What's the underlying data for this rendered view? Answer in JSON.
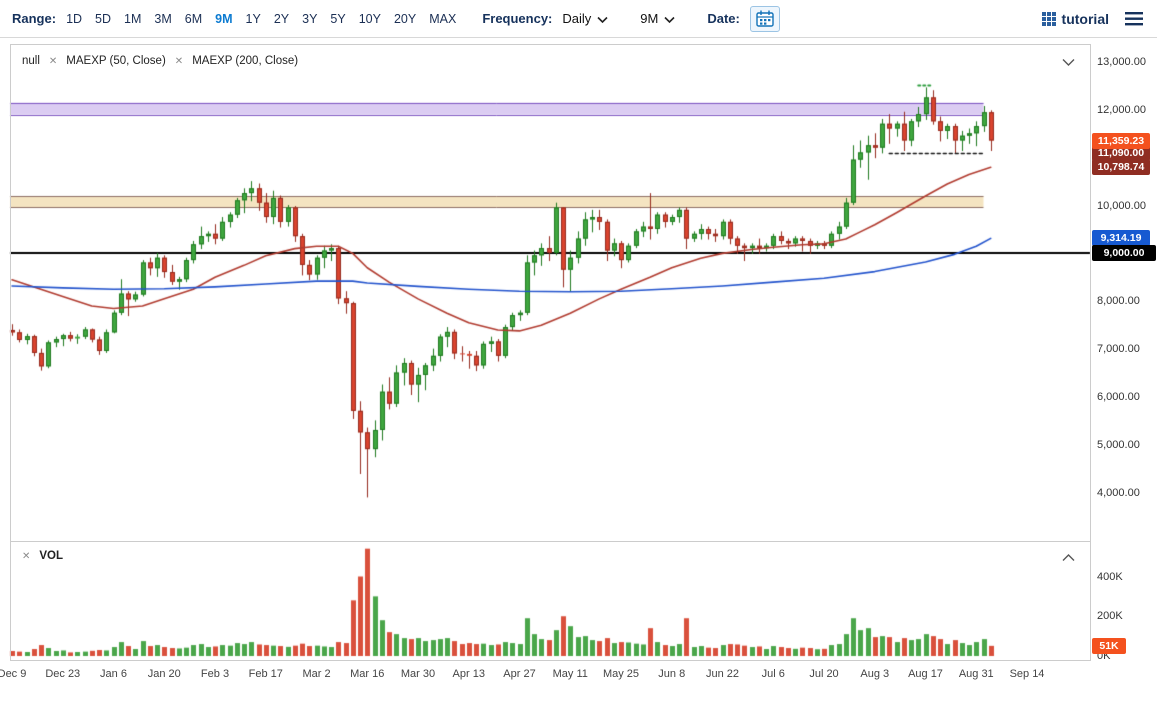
{
  "toolbar": {
    "range_label": "Range:",
    "ranges": [
      "1D",
      "5D",
      "1M",
      "3M",
      "6M",
      "9M",
      "1Y",
      "2Y",
      "3Y",
      "5Y",
      "10Y",
      "20Y",
      "MAX"
    ],
    "active_range": "9M",
    "frequency_label": "Frequency:",
    "frequency_value": "Daily",
    "period_value": "9M",
    "date_label": "Date:",
    "brand": "tutorial"
  },
  "icons": {
    "close": "✕"
  },
  "legend": {
    "series_name": "null",
    "studies": [
      "MAEXP (50, Close)",
      "MAEXP (200, Close)"
    ],
    "volume_label": "VOL"
  },
  "axis": {
    "price_ticks": [
      "13,000.00",
      "12,000.00",
      "11,000.00",
      "10,000.00",
      "9,000.00",
      "8,000.00",
      "7,000.00",
      "6,000.00",
      "5,000.00",
      "4,000.00"
    ],
    "volume_ticks": [
      "400K",
      "200K",
      "0K"
    ],
    "x_ticks": [
      "Dec 9",
      "Dec 23",
      "Jan 6",
      "Jan 20",
      "Feb 3",
      "Feb 17",
      "Mar 2",
      "Mar 16",
      "Mar 30",
      "Apr 13",
      "Apr 27",
      "May 11",
      "May 25",
      "Jun 8",
      "Jun 22",
      "Jul 6",
      "Jul 20",
      "Aug 3",
      "Aug 17",
      "Aug 31",
      "Sep 14"
    ]
  },
  "badges": {
    "last_price": {
      "text": "11,359.23",
      "color": "#f4511e",
      "value": 11359.23
    },
    "annotation": {
      "text": "11,090.00",
      "color": "#8f2d22",
      "value": 11090
    },
    "ma50": {
      "text": "10,798.74",
      "color": "#8f2d22",
      "value": 10798.74
    },
    "ma200": {
      "text": "9,314.19",
      "color": "#1659d1",
      "value": 9314.19
    },
    "hline": {
      "text": "9,000.00",
      "color": "#000000",
      "value": 9000
    },
    "volume": {
      "text": "51K",
      "color": "#f4511e",
      "value": 51
    }
  },
  "chart_data": {
    "type": "candlestick",
    "frequency": "Daily",
    "range": "9M",
    "x_tick_labels": [
      "Dec 9",
      "Dec 23",
      "Jan 6",
      "Jan 20",
      "Feb 3",
      "Feb 17",
      "Mar 2",
      "Mar 16",
      "Mar 30",
      "Apr 13",
      "Apr 27",
      "May 11",
      "May 25",
      "Jun 8",
      "Jun 22",
      "Jul 6",
      "Jul 20",
      "Aug 3",
      "Aug 17",
      "Aug 31",
      "Sep 14"
    ],
    "x_tick_step": 7,
    "price_axis": {
      "min": 3600,
      "max": 13200,
      "tick_values": [
        13000,
        12000,
        11000,
        10000,
        9000,
        8000,
        7000,
        6000,
        5000,
        4000
      ]
    },
    "volume_axis": {
      "unit": "K",
      "max": 560,
      "tick_values": [
        400,
        200,
        0
      ]
    },
    "last_price": 11359.23,
    "candles_ohlcv": [
      [
        7400,
        7520,
        7280,
        7350,
        25
      ],
      [
        7350,
        7410,
        7140,
        7190,
        22
      ],
      [
        7190,
        7320,
        7100,
        7270,
        20
      ],
      [
        7270,
        7300,
        6850,
        6920,
        35
      ],
      [
        6920,
        7010,
        6550,
        6640,
        55
      ],
      [
        6640,
        7180,
        6600,
        7140,
        40
      ],
      [
        7140,
        7260,
        7040,
        7210,
        25
      ],
      [
        7210,
        7320,
        7060,
        7290,
        28
      ],
      [
        7290,
        7360,
        7160,
        7220,
        18
      ],
      [
        7220,
        7310,
        7110,
        7260,
        20
      ],
      [
        7260,
        7460,
        7210,
        7410,
        22
      ],
      [
        7410,
        7430,
        7140,
        7200,
        26
      ],
      [
        7200,
        7260,
        6880,
        6960,
        30
      ],
      [
        6960,
        7410,
        6920,
        7350,
        28
      ],
      [
        7350,
        7810,
        7330,
        7760,
        45
      ],
      [
        7760,
        8460,
        7710,
        8160,
        70
      ],
      [
        8160,
        8210,
        7690,
        8040,
        50
      ],
      [
        8040,
        8200,
        7990,
        8140,
        35
      ],
      [
        8140,
        8860,
        8100,
        8810,
        75
      ],
      [
        8810,
        8910,
        8540,
        8690,
        50
      ],
      [
        8690,
        9010,
        8510,
        8910,
        55
      ],
      [
        8910,
        8960,
        8490,
        8610,
        45
      ],
      [
        8610,
        8760,
        8340,
        8410,
        40
      ],
      [
        8410,
        8510,
        8240,
        8460,
        38
      ],
      [
        8460,
        8910,
        8400,
        8860,
        42
      ],
      [
        8860,
        9260,
        8790,
        9190,
        55
      ],
      [
        9190,
        9560,
        9090,
        9360,
        60
      ],
      [
        9360,
        9460,
        9240,
        9410,
        45
      ],
      [
        9410,
        9610,
        9190,
        9310,
        48
      ],
      [
        9310,
        9760,
        9260,
        9660,
        55
      ],
      [
        9660,
        9860,
        9540,
        9810,
        52
      ],
      [
        9810,
        10160,
        9740,
        10110,
        65
      ],
      [
        10110,
        10360,
        9840,
        10260,
        60
      ],
      [
        10260,
        10510,
        10090,
        10360,
        70
      ],
      [
        10360,
        10460,
        9890,
        10060,
        58
      ],
      [
        10060,
        10260,
        9640,
        9760,
        55
      ],
      [
        9760,
        10310,
        9610,
        10160,
        52
      ],
      [
        10160,
        10210,
        9540,
        9660,
        50
      ],
      [
        9660,
        10010,
        9560,
        9960,
        46
      ],
      [
        9960,
        9990,
        9240,
        9360,
        52
      ],
      [
        9360,
        9410,
        8540,
        8760,
        62
      ],
      [
        8760,
        8860,
        8440,
        8560,
        50
      ],
      [
        8560,
        8960,
        8450,
        8910,
        52
      ],
      [
        8910,
        9160,
        8690,
        9060,
        48
      ],
      [
        9060,
        9190,
        8840,
        9110,
        45
      ],
      [
        9110,
        9160,
        7940,
        8060,
        70
      ],
      [
        8060,
        8210,
        7740,
        7960,
        65
      ],
      [
        7960,
        7990,
        5540,
        5710,
        280
      ],
      [
        5710,
        5910,
        4390,
        5260,
        400
      ],
      [
        5260,
        5360,
        3900,
        4910,
        540
      ],
      [
        4910,
        5510,
        4740,
        5310,
        300
      ],
      [
        5310,
        6260,
        5090,
        6110,
        180
      ],
      [
        6110,
        6410,
        5740,
        5860,
        120
      ],
      [
        5860,
        6660,
        5790,
        6510,
        110
      ],
      [
        6510,
        6810,
        6240,
        6710,
        90
      ],
      [
        6710,
        6760,
        6040,
        6260,
        85
      ],
      [
        6260,
        6610,
        5890,
        6460,
        90
      ],
      [
        6460,
        6710,
        6140,
        6660,
        75
      ],
      [
        6660,
        7010,
        6540,
        6860,
        80
      ],
      [
        6860,
        7310,
        6740,
        7260,
        85
      ],
      [
        7260,
        7460,
        7040,
        7360,
        90
      ],
      [
        7360,
        7410,
        6790,
        6910,
        75
      ],
      [
        6910,
        7060,
        6740,
        6900,
        60
      ],
      [
        6900,
        6960,
        6590,
        6860,
        65
      ],
      [
        6860,
        6960,
        6540,
        6660,
        60
      ],
      [
        6660,
        7160,
        6590,
        7110,
        62
      ],
      [
        7110,
        7260,
        6940,
        7160,
        55
      ],
      [
        7160,
        7210,
        6740,
        6860,
        58
      ],
      [
        6860,
        7510,
        6810,
        7460,
        70
      ],
      [
        7460,
        7760,
        7390,
        7710,
        65
      ],
      [
        7710,
        7810,
        7590,
        7760,
        60
      ],
      [
        7760,
        8960,
        7710,
        8810,
        190
      ],
      [
        8810,
        9060,
        8540,
        8960,
        110
      ],
      [
        8960,
        9210,
        8740,
        9110,
        85
      ],
      [
        9110,
        9360,
        8840,
        9010,
        80
      ],
      [
        9010,
        10060,
        8960,
        9960,
        130
      ],
      [
        9960,
        9970,
        8290,
        8660,
        200
      ],
      [
        8660,
        9060,
        8210,
        8910,
        150
      ],
      [
        8910,
        9460,
        8790,
        9310,
        95
      ],
      [
        9310,
        9860,
        9160,
        9710,
        100
      ],
      [
        9710,
        9910,
        9440,
        9760,
        80
      ],
      [
        9760,
        9910,
        9490,
        9660,
        75
      ],
      [
        9660,
        9710,
        8840,
        9060,
        90
      ],
      [
        9060,
        9310,
        8940,
        9210,
        65
      ],
      [
        9210,
        9260,
        8690,
        8860,
        70
      ],
      [
        8860,
        9210,
        8810,
        9160,
        68
      ],
      [
        9160,
        9510,
        9110,
        9460,
        62
      ],
      [
        9460,
        9660,
        9340,
        9560,
        58
      ],
      [
        9560,
        10260,
        9290,
        9510,
        140
      ],
      [
        9510,
        9860,
        9410,
        9810,
        70
      ],
      [
        9810,
        9860,
        9540,
        9660,
        55
      ],
      [
        9660,
        9810,
        9590,
        9760,
        50
      ],
      [
        9760,
        9960,
        9640,
        9910,
        60
      ],
      [
        9910,
        9960,
        9090,
        9310,
        190
      ],
      [
        9310,
        9460,
        9240,
        9410,
        45
      ],
      [
        9410,
        9610,
        9290,
        9510,
        50
      ],
      [
        9510,
        9560,
        9290,
        9410,
        42
      ],
      [
        9410,
        9510,
        9240,
        9360,
        40
      ],
      [
        9360,
        9710,
        9290,
        9660,
        55
      ],
      [
        9660,
        9710,
        9190,
        9310,
        60
      ],
      [
        9310,
        9360,
        8990,
        9160,
        58
      ],
      [
        9160,
        9210,
        8840,
        9110,
        52
      ],
      [
        9110,
        9210,
        8990,
        9160,
        45
      ],
      [
        9160,
        9310,
        8990,
        9110,
        48
      ],
      [
        9110,
        9210,
        9040,
        9160,
        35
      ],
      [
        9160,
        9410,
        9090,
        9360,
        50
      ],
      [
        9360,
        9460,
        9190,
        9260,
        45
      ],
      [
        9260,
        9310,
        9090,
        9210,
        40
      ],
      [
        9210,
        9360,
        9140,
        9310,
        36
      ],
      [
        9310,
        9360,
        9040,
        9260,
        42
      ],
      [
        9260,
        9310,
        8990,
        9160,
        40
      ],
      [
        9160,
        9260,
        9090,
        9210,
        34
      ],
      [
        9210,
        9260,
        9090,
        9160,
        36
      ],
      [
        9160,
        9460,
        9110,
        9410,
        55
      ],
      [
        9410,
        9660,
        9290,
        9560,
        60
      ],
      [
        9560,
        10160,
        9510,
        10060,
        110
      ],
      [
        10060,
        11260,
        10010,
        10960,
        190
      ],
      [
        10960,
        11360,
        10790,
        11110,
        130
      ],
      [
        11110,
        11460,
        10540,
        11260,
        140
      ],
      [
        11260,
        11510,
        10990,
        11210,
        95
      ],
      [
        11210,
        11810,
        11090,
        11710,
        100
      ],
      [
        11710,
        11910,
        11290,
        11610,
        95
      ],
      [
        11610,
        11760,
        11440,
        11710,
        70
      ],
      [
        11710,
        11960,
        11140,
        11360,
        90
      ],
      [
        11360,
        11810,
        11240,
        11760,
        80
      ],
      [
        11760,
        12060,
        11640,
        11910,
        85
      ],
      [
        11910,
        12470,
        11790,
        12260,
        110
      ],
      [
        12260,
        12410,
        11690,
        11760,
        100
      ],
      [
        11760,
        11860,
        11340,
        11560,
        85
      ],
      [
        11560,
        11710,
        11390,
        11660,
        60
      ],
      [
        11660,
        11710,
        11090,
        11360,
        80
      ],
      [
        11360,
        11560,
        11140,
        11460,
        65
      ],
      [
        11460,
        11610,
        11290,
        11510,
        55
      ],
      [
        11510,
        11760,
        11240,
        11660,
        70
      ],
      [
        11660,
        12080,
        11540,
        11950,
        85
      ],
      [
        11950,
        11990,
        11140,
        11359.23,
        51
      ]
    ],
    "ma50_points": [
      [
        0,
        8450
      ],
      [
        7,
        8100
      ],
      [
        11,
        7900
      ],
      [
        14,
        7850
      ],
      [
        18,
        7900
      ],
      [
        21,
        8050
      ],
      [
        25,
        8250
      ],
      [
        28,
        8500
      ],
      [
        32,
        8750
      ],
      [
        35,
        8950
      ],
      [
        39,
        9100
      ],
      [
        42,
        9150
      ],
      [
        45,
        9150
      ],
      [
        47,
        9000
      ],
      [
        49,
        8700
      ],
      [
        52,
        8400
      ],
      [
        56,
        8050
      ],
      [
        60,
        7750
      ],
      [
        63,
        7550
      ],
      [
        67,
        7400
      ],
      [
        70,
        7380
      ],
      [
        73,
        7500
      ],
      [
        77,
        7750
      ],
      [
        81,
        8050
      ],
      [
        84,
        8250
      ],
      [
        88,
        8500
      ],
      [
        91,
        8700
      ],
      [
        95,
        8900
      ],
      [
        98,
        9000
      ],
      [
        102,
        9080
      ],
      [
        105,
        9130
      ],
      [
        109,
        9180
      ],
      [
        112,
        9200
      ],
      [
        115,
        9300
      ],
      [
        117,
        9450
      ],
      [
        119,
        9600
      ],
      [
        122,
        9850
      ],
      [
        126,
        10200
      ],
      [
        129,
        10450
      ],
      [
        132,
        10650
      ],
      [
        135,
        10798.74
      ]
    ],
    "ma200_points": [
      [
        0,
        8320
      ],
      [
        7,
        8280
      ],
      [
        14,
        8250
      ],
      [
        21,
        8260
      ],
      [
        28,
        8300
      ],
      [
        35,
        8360
      ],
      [
        42,
        8420
      ],
      [
        47,
        8420
      ],
      [
        49,
        8380
      ],
      [
        56,
        8310
      ],
      [
        63,
        8250
      ],
      [
        70,
        8210
      ],
      [
        77,
        8200
      ],
      [
        84,
        8210
      ],
      [
        91,
        8260
      ],
      [
        98,
        8320
      ],
      [
        105,
        8400
      ],
      [
        112,
        8480
      ],
      [
        119,
        8620
      ],
      [
        126,
        8820
      ],
      [
        130,
        8980
      ],
      [
        133,
        9150
      ],
      [
        135,
        9314.19
      ]
    ],
    "annotations": {
      "bands": [
        {
          "from": 11900,
          "to": 12150,
          "fill": "rgba(176,141,226,0.45)",
          "border": "#7e57c2",
          "end_index": 134
        },
        {
          "from": 9970,
          "to": 10200,
          "fill": "rgba(240,217,166,0.70)",
          "border": "#8d6e63",
          "end_index": 134
        }
      ],
      "hlines": [
        {
          "value": 9000,
          "color": "#000000",
          "width": 2
        }
      ],
      "segments": [
        {
          "value": 11090,
          "x_from_index": 121,
          "x_to_index": 134,
          "color": "#111111",
          "width": 1.5,
          "dash": [
            3,
            3
          ]
        },
        {
          "value": 12520,
          "x_from_index": 125,
          "x_to_index": 127,
          "color": "#2e9e3f",
          "width": 2,
          "dash": [
            2,
            3
          ]
        }
      ]
    },
    "colors": {
      "up": "#3fa63f",
      "up_border": "#1f7a1f",
      "down": "#d9442f",
      "down_border": "#952a1e",
      "vol_up": "#4aa64a",
      "vol_down": "#d9503c",
      "ma50": "#b03a2e",
      "ma200": "#2152cc",
      "hline": "#000000"
    }
  }
}
